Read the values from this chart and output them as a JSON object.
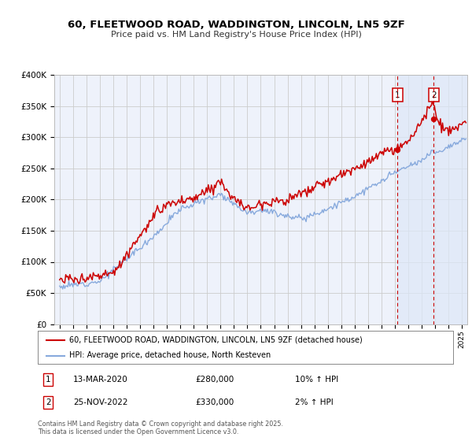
{
  "title": "60, FLEETWOOD ROAD, WADDINGTON, LINCOLN, LN5 9ZF",
  "subtitle": "Price paid vs. HM Land Registry's House Price Index (HPI)",
  "background_color": "#ffffff",
  "plot_background": "#eef2fb",
  "grid_color": "#cccccc",
  "red_color": "#cc0000",
  "blue_color": "#88aadd",
  "shade_color": "#dde8f8",
  "marker1_x": 2020.2,
  "marker2_x": 2022.9,
  "marker1_label": "13-MAR-2020",
  "marker1_price": "£280,000",
  "marker1_hpi": "10% ↑ HPI",
  "marker2_label": "25-NOV-2022",
  "marker2_price": "£330,000",
  "marker2_hpi": "2% ↑ HPI",
  "legend_line1": "60, FLEETWOOD ROAD, WADDINGTON, LINCOLN, LN5 9ZF (detached house)",
  "legend_line2": "HPI: Average price, detached house, North Kesteven",
  "footer": "Contains HM Land Registry data © Crown copyright and database right 2025.\nThis data is licensed under the Open Government Licence v3.0.",
  "ylim": [
    0,
    400000
  ],
  "ytick_max": 400000,
  "xlim_start": 1994.6,
  "xlim_end": 2025.4
}
